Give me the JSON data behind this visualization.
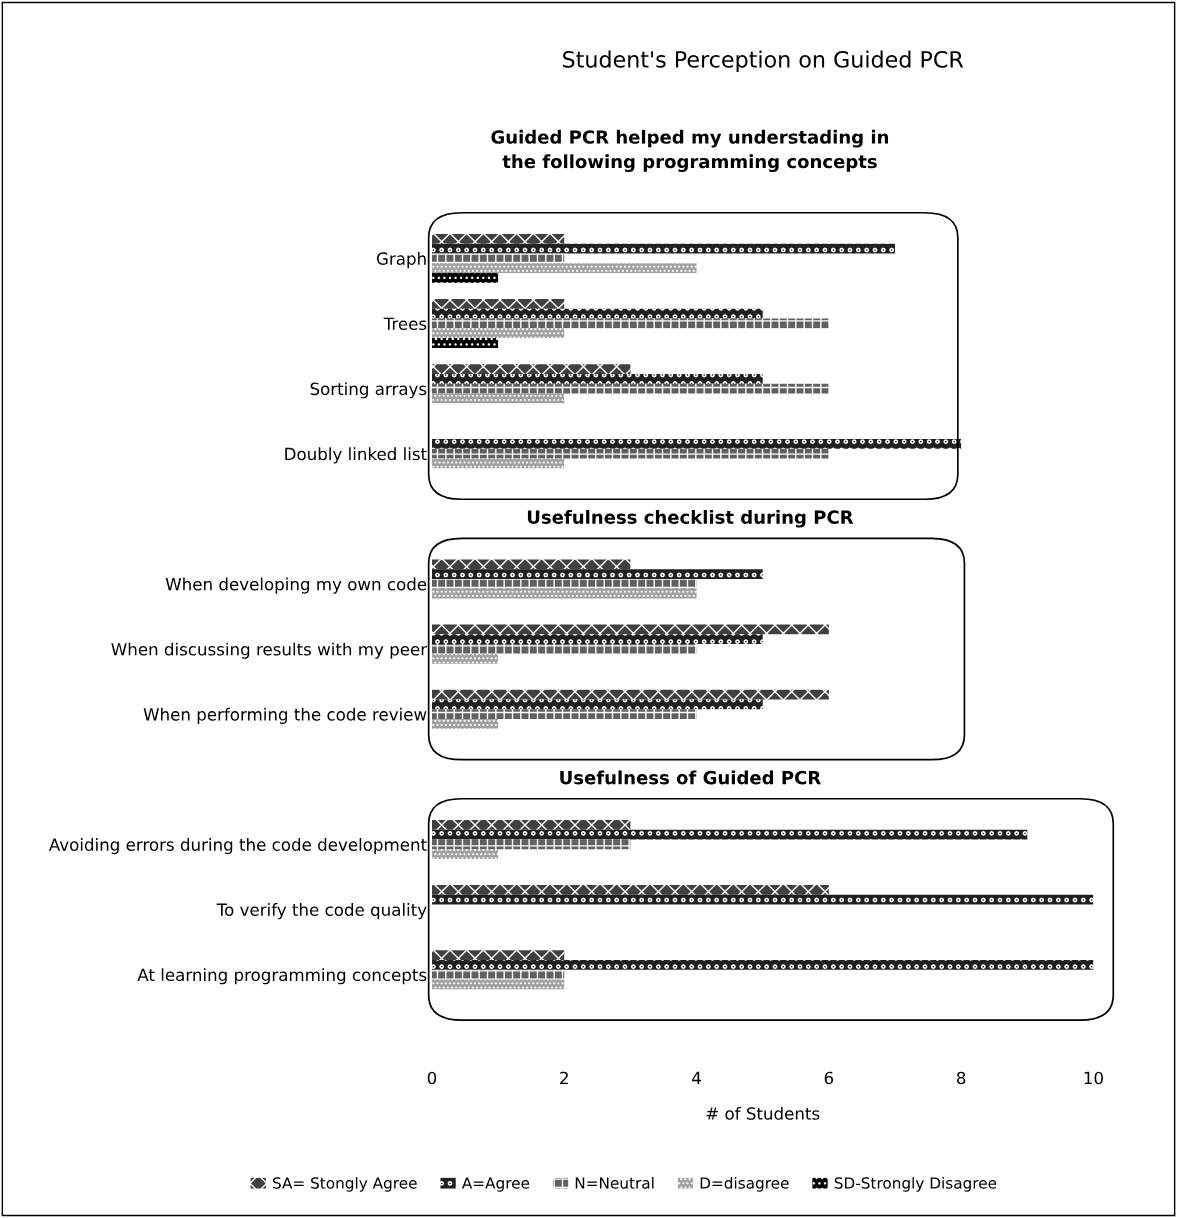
{
  "chart_data": {
    "type": "bar",
    "orientation": "horizontal",
    "title": "Student's Perception on Guided PCR",
    "xlabel": "# of Students",
    "categories": [
      "Graph",
      "Trees",
      "Sorting arrays",
      "Doubly linked list",
      "When developing my own code",
      "When discussing results with my peer",
      "When performing the code review",
      "Avoiding errors during the code development",
      "To verify the code quality",
      "At learning programming concepts"
    ],
    "series": [
      {
        "name": "SA= Stongly Agree",
        "color": "#404040",
        "values": [
          2,
          2,
          3,
          0,
          3,
          6,
          6,
          3,
          6,
          2
        ]
      },
      {
        "name": "A=Agree",
        "color": "#202020",
        "values": [
          7,
          5,
          5,
          8,
          5,
          5,
          5,
          9,
          10,
          10
        ]
      },
      {
        "name": "N=Neutral",
        "color": "#606060",
        "values": [
          2,
          6,
          6,
          6,
          4,
          4,
          4,
          3,
          0,
          2
        ]
      },
      {
        "name": "D=disagree",
        "color": "#a0a0a0",
        "values": [
          4,
          2,
          2,
          2,
          4,
          1,
          1,
          1,
          0,
          2
        ]
      },
      {
        "name": "SD-Strongly Disagree",
        "color": "#000000",
        "values": [
          1,
          1,
          0,
          0,
          0,
          0,
          0,
          0,
          0,
          0
        ]
      }
    ],
    "annotations": [
      "Guided PCR helped my understading in\nthe following programming concepts",
      "Usefulness checklist during PCR",
      "Usefulness of Guided PCR"
    ],
    "xlim": [
      0,
      10
    ],
    "xticks": [
      0,
      2,
      4,
      6,
      8,
      10
    ],
    "grid": false,
    "legend": "bottom"
  }
}
